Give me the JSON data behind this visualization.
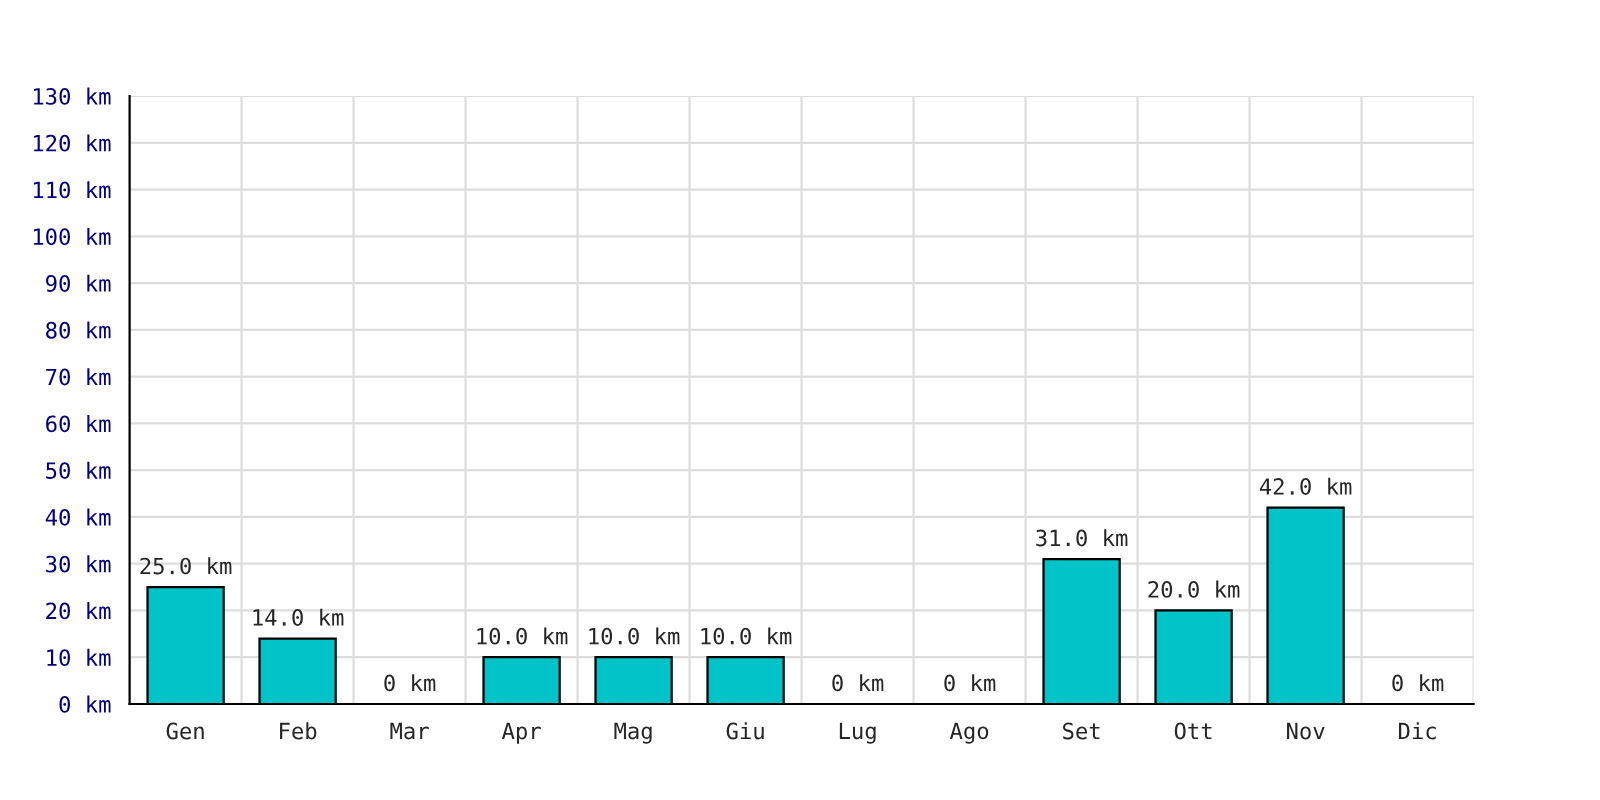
{
  "chart_data": {
    "type": "bar",
    "categories": [
      "Gen",
      "Feb",
      "Mar",
      "Apr",
      "Mag",
      "Giu",
      "Lug",
      "Ago",
      "Set",
      "Ott",
      "Nov",
      "Dic"
    ],
    "values": [
      25,
      14,
      0,
      10,
      10,
      10,
      0,
      0,
      31,
      20,
      42,
      0
    ],
    "value_labels": [
      "25.0 km",
      "14.0 km",
      "0 km",
      "10.0 km",
      "10.0 km",
      "10.0 km",
      "0 km",
      "0 km",
      "31.0 km",
      "20.0 km",
      "42.0 km",
      "0 km"
    ],
    "color": "#00c4c8",
    "ylim": [
      0,
      130
    ],
    "yticks": [
      {
        "value": 0,
        "label": "0 km"
      },
      {
        "value": 10,
        "label": "10 km"
      },
      {
        "value": 20,
        "label": "20 km"
      },
      {
        "value": 30,
        "label": "30 km"
      },
      {
        "value": 40,
        "label": "40 km"
      },
      {
        "value": 50,
        "label": "50 km"
      },
      {
        "value": 60,
        "label": "60 km"
      },
      {
        "value": 70,
        "label": "70 km"
      },
      {
        "value": 80,
        "label": "80 km"
      },
      {
        "value": 90,
        "label": "90 km"
      },
      {
        "value": 100,
        "label": "100 km"
      },
      {
        "value": 110,
        "label": "110 km"
      },
      {
        "value": 120,
        "label": "120 km"
      },
      {
        "value": 130,
        "label": "130 km"
      }
    ],
    "grid": true
  }
}
